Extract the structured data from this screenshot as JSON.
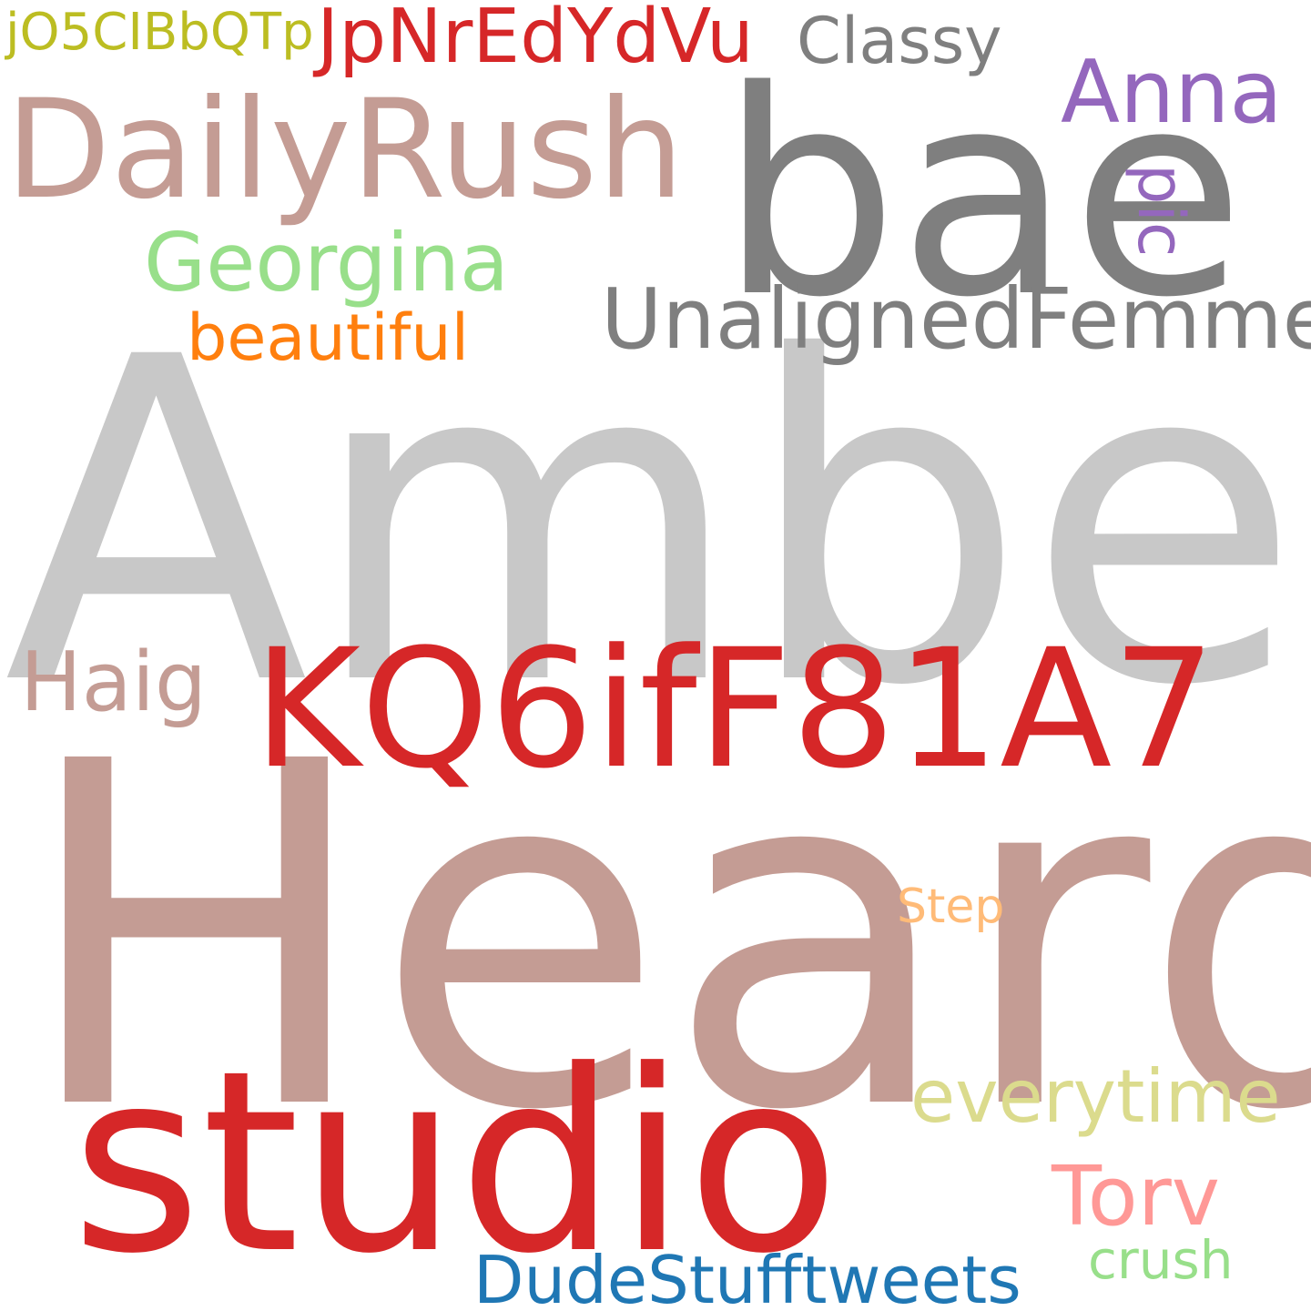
{
  "words": [
    {
      "id": "amber",
      "text": "Amber",
      "color": "#c8c8c8"
    },
    {
      "id": "heard",
      "text": "Heard",
      "color": "#c49c94"
    },
    {
      "id": "studio",
      "text": "studio",
      "color": "#d62728"
    },
    {
      "id": "kq6",
      "text": "KQ6ifF81A7",
      "color": "#d62728"
    },
    {
      "id": "bae",
      "text": "bae",
      "color": "#7f7f7f"
    },
    {
      "id": "dailyrush",
      "text": "DailyRush",
      "color": "#c49c94"
    },
    {
      "id": "unaligned",
      "text": "UnalignedFemme",
      "color": "#7f7f7f"
    },
    {
      "id": "jpnr",
      "text": "JpNrEdYdVu",
      "color": "#d62728"
    },
    {
      "id": "jo5",
      "text": "jO5CIBbQTp",
      "color": "#bcbd22"
    },
    {
      "id": "classy",
      "text": "Classy",
      "color": "#7f7f7f"
    },
    {
      "id": "anna",
      "text": "Anna",
      "color": "#9467bd"
    },
    {
      "id": "georgina",
      "text": "Georgina",
      "color": "#98df8a"
    },
    {
      "id": "beautiful",
      "text": "beautiful",
      "color": "#ff7f0e"
    },
    {
      "id": "haig",
      "text": "Haig",
      "color": "#c49c94"
    },
    {
      "id": "step",
      "text": "Step",
      "color": "#ffbb78"
    },
    {
      "id": "everytime",
      "text": "everytime",
      "color": "#dbdb8d"
    },
    {
      "id": "torv",
      "text": "Torv",
      "color": "#ff9896"
    },
    {
      "id": "dude",
      "text": "DudeStufftweets",
      "color": "#1f77b4"
    },
    {
      "id": "crush",
      "text": "crush",
      "color": "#98df8a"
    },
    {
      "id": "pic",
      "text": "pic",
      "color": "#9467bd"
    }
  ]
}
